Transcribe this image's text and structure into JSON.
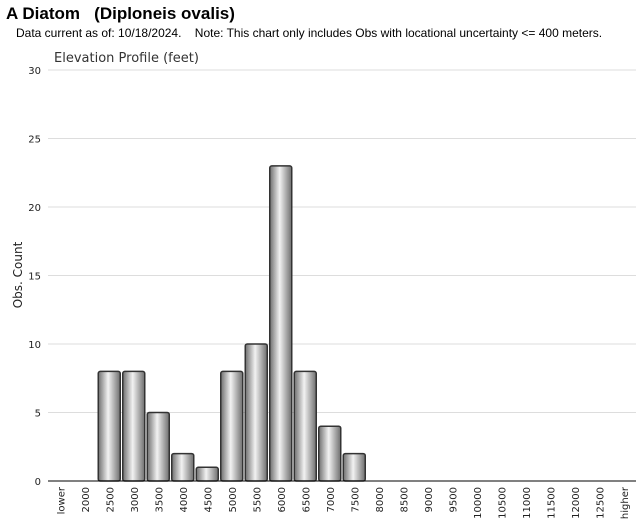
{
  "header": {
    "title": "A Diatom   (Diploneis ovalis)",
    "note": "Data current as of: 10/18/2024.    Note: This chart only includes Obs with locational uncertainty <= 400 meters."
  },
  "chart_data": {
    "type": "bar",
    "title": "Elevation Profile (feet)",
    "xlabel": "",
    "ylabel": "Obs. Count",
    "ylim": [
      0,
      30
    ],
    "yticks": [
      0,
      5,
      10,
      15,
      20,
      25,
      30
    ],
    "grid": true,
    "categories": [
      "lower",
      "2000",
      "2500",
      "3000",
      "3500",
      "4000",
      "4500",
      "5000",
      "5500",
      "6000",
      "6500",
      "7000",
      "7500",
      "8000",
      "8500",
      "9000",
      "9500",
      "10000",
      "10500",
      "11000",
      "11500",
      "12000",
      "12500",
      "higher"
    ],
    "values": [
      0,
      0,
      8,
      8,
      5,
      2,
      1,
      8,
      10,
      23,
      8,
      4,
      2,
      0,
      0,
      0,
      0,
      0,
      0,
      0,
      0,
      0,
      0,
      0
    ],
    "colors": {
      "bar_edge": "#333333",
      "bar_light": "#f2f2f2",
      "bar_dark": "#6e6e6e",
      "grid": "#dddddd",
      "axis": "#000000"
    }
  }
}
